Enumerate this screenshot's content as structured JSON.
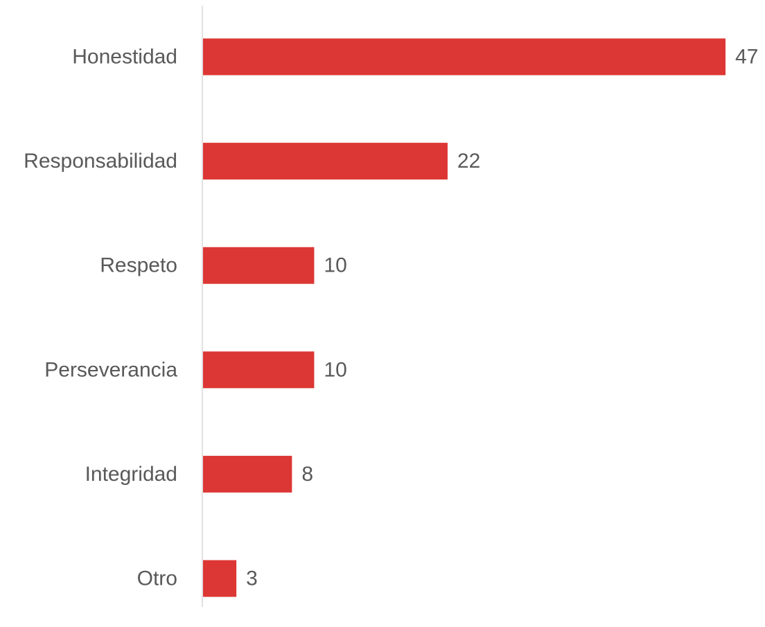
{
  "chart_data": {
    "type": "bar",
    "orientation": "horizontal",
    "categories": [
      "Honestidad",
      "Responsabilidad",
      "Respeto",
      "Perseverancia",
      "Integridad",
      "Otro"
    ],
    "values": [
      47,
      22,
      10,
      10,
      8,
      3
    ],
    "data_labels": [
      "47",
      "22",
      "10",
      "10",
      "8",
      "3"
    ],
    "title": "",
    "xlabel": "",
    "ylabel": "",
    "xlim": [
      0,
      47
    ],
    "grid": false,
    "legend": "none",
    "bar_color": "#DC3734",
    "text_color": "#595959",
    "axis_color": "#D9D9D9"
  }
}
